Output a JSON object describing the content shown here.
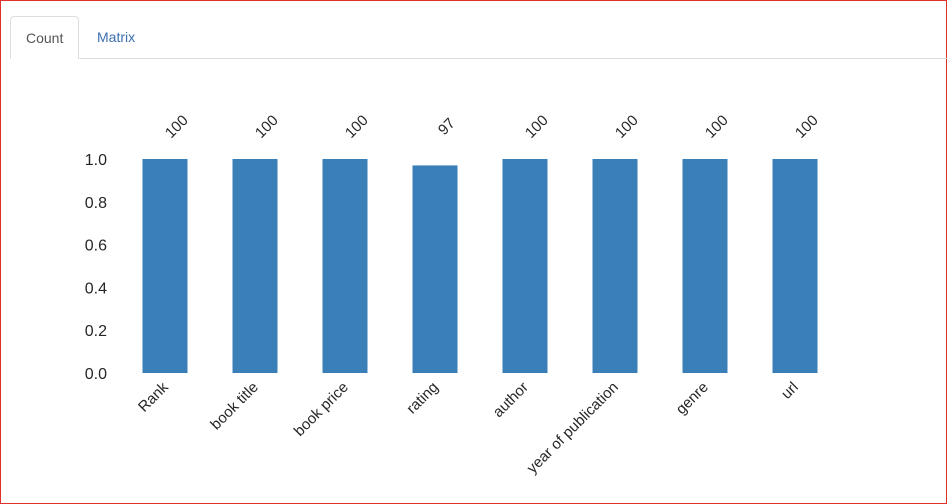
{
  "tabs": [
    {
      "label": "Count",
      "active": true
    },
    {
      "label": "Matrix",
      "active": false
    }
  ],
  "colors": {
    "bar": "#3a7fb8",
    "active_tab_text": "#555555",
    "inactive_tab_text": "#3b6fb0",
    "frame_border": "#e0302a"
  },
  "chart_data": {
    "type": "bar",
    "categories": [
      "Rank",
      "book title",
      "book price",
      "rating",
      "author",
      "year of publication",
      "genre",
      "url"
    ],
    "values": [
      1.0,
      1.0,
      1.0,
      0.97,
      1.0,
      1.0,
      1.0,
      1.0
    ],
    "data_labels": [
      "100",
      "100",
      "100",
      "97",
      "100",
      "100",
      "100",
      "100"
    ],
    "yticks": [
      "0.0",
      "0.2",
      "0.4",
      "0.6",
      "0.8",
      "1.0"
    ],
    "ylim": [
      0,
      1.0
    ],
    "grid": false,
    "legend": "none"
  }
}
